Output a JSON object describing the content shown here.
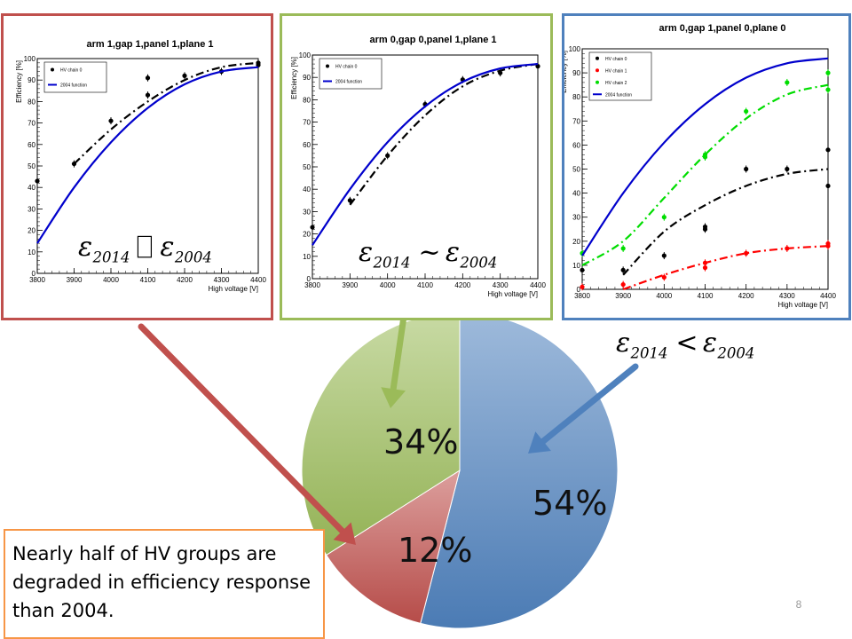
{
  "slide": {
    "textbox": "Nearly half of HV groups are degraded in efficiency response than 2004.",
    "page_number": "8"
  },
  "colors": {
    "pie_blue": "#4f81bd",
    "pie_red": "#c0504d",
    "pie_green": "#9bbb59",
    "arrow_red": "#c0504d",
    "arrow_green": "#9bbb59",
    "arrow_blue": "#4f81bd"
  },
  "chart_data": [
    {
      "type": "pie",
      "labels": [
        "54%",
        "12%",
        "34%"
      ],
      "values": [
        54,
        12,
        34
      ],
      "colors": [
        "#4f81bd",
        "#c0504d",
        "#9bbb59"
      ]
    },
    {
      "type": "scatter",
      "title": "arm 1,gap 1,panel 1,plane 1",
      "xlabel": "High voltage [V]",
      "ylabel": "Efficiency [%]",
      "xlim": [
        3800,
        4400
      ],
      "ylim": [
        0,
        100
      ],
      "x_ticks": [
        3800,
        3900,
        4000,
        4100,
        4200,
        4300,
        4400
      ],
      "y_ticks": [
        0,
        10,
        20,
        30,
        40,
        50,
        60,
        70,
        80,
        90,
        100
      ],
      "legend": [
        "HV chain 0",
        "2004 function"
      ],
      "relation": "ε2014 ⬚ ε2004",
      "series": [
        {
          "name": "HV chain 0",
          "color": "#000000",
          "kind": "points",
          "x": [
            3800,
            3900,
            4000,
            4100,
            4100,
            4200,
            4300,
            4400,
            4400
          ],
          "y": [
            43,
            51,
            71,
            91,
            83,
            92,
            94,
            98,
            97
          ]
        },
        {
          "color": "#000000",
          "kind": "fit-dashdot",
          "x": [
            3900,
            4000,
            4100,
            4200,
            4300,
            4400
          ],
          "y": [
            51,
            67,
            80,
            90,
            96,
            98
          ]
        },
        {
          "name": "2004 function",
          "color": "#0000cc",
          "kind": "line",
          "x": [
            3800,
            3900,
            4000,
            4100,
            4200,
            4300,
            4400
          ],
          "y": [
            14,
            40,
            61,
            77,
            88,
            94,
            96
          ]
        }
      ]
    },
    {
      "type": "scatter",
      "title": "arm 0,gap 0,panel 1,plane 1",
      "xlabel": "High voltage [V]",
      "ylabel": "Efficiency [%]",
      "xlim": [
        3800,
        4400
      ],
      "ylim": [
        0,
        100
      ],
      "x_ticks": [
        3800,
        3900,
        4000,
        4100,
        4200,
        4300,
        4400
      ],
      "y_ticks": [
        0,
        10,
        20,
        30,
        40,
        50,
        60,
        70,
        80,
        90,
        100
      ],
      "legend": [
        "HV chain 0",
        "2004 function"
      ],
      "relation": "ε2014 ~ ε2004",
      "series": [
        {
          "name": "HV chain 0",
          "color": "#000000",
          "kind": "points",
          "x": [
            3800,
            3900,
            4000,
            4100,
            4200,
            4300,
            4400
          ],
          "y": [
            23,
            35,
            55,
            78,
            89,
            92,
            95
          ]
        },
        {
          "color": "#000000",
          "kind": "fit-dashdot",
          "x": [
            3900,
            4000,
            4100,
            4200,
            4300,
            4400
          ],
          "y": [
            33,
            55,
            73,
            86,
            93,
            96
          ]
        },
        {
          "name": "2004 function",
          "color": "#0000cc",
          "kind": "line",
          "x": [
            3800,
            3900,
            4000,
            4100,
            4200,
            4300,
            4400
          ],
          "y": [
            15,
            40,
            61,
            77,
            88,
            94,
            96
          ]
        }
      ]
    },
    {
      "type": "scatter",
      "title": "arm 0,gap 1,panel 0,plane 0",
      "xlabel": "High voltage [V]",
      "ylabel": "Efficiency [%]",
      "xlim": [
        3800,
        4400
      ],
      "ylim": [
        0,
        100
      ],
      "x_ticks": [
        3800,
        3900,
        4000,
        4100,
        4200,
        4300,
        4400
      ],
      "y_ticks": [
        0,
        10,
        20,
        30,
        40,
        50,
        60,
        70,
        80,
        90,
        100
      ],
      "legend": [
        "HV chain 0",
        "HV chain 1",
        "HV chain 2",
        "2004 function"
      ],
      "relation": "ε2014 < ε2004",
      "series": [
        {
          "name": "HV chain 0",
          "color": "#000000",
          "kind": "points",
          "x": [
            3800,
            3900,
            4000,
            4100,
            4100,
            4200,
            4300,
            4400,
            4400
          ],
          "y": [
            8,
            8,
            14,
            25,
            26,
            50,
            50,
            58,
            43
          ]
        },
        {
          "color": "#000000",
          "kind": "fit-dashdot",
          "x": [
            3900,
            4000,
            4100,
            4200,
            4300,
            4400
          ],
          "y": [
            6,
            24,
            35,
            43,
            48,
            50
          ]
        },
        {
          "name": "HV chain 1",
          "color": "#ff0000",
          "kind": "points",
          "x": [
            3800,
            3900,
            4000,
            4100,
            4100,
            4200,
            4300,
            4400,
            4400
          ],
          "y": [
            1,
            2,
            5,
            9,
            11,
            15,
            17,
            18,
            19
          ]
        },
        {
          "color": "#ff0000",
          "kind": "fit-dashdot",
          "x": [
            3900,
            4000,
            4100,
            4200,
            4300,
            4400
          ],
          "y": [
            0,
            6,
            11,
            15,
            17,
            18
          ]
        },
        {
          "name": "HV chain 2",
          "color": "#00dd00",
          "kind": "points",
          "x": [
            3800,
            3900,
            4000,
            4100,
            4100,
            4200,
            4300,
            4400,
            4400
          ],
          "y": [
            15,
            17,
            30,
            55,
            56,
            74,
            86,
            90,
            83
          ]
        },
        {
          "color": "#00dd00",
          "kind": "fit-dashdot",
          "x": [
            3800,
            3900,
            4000,
            4100,
            4200,
            4300,
            4400
          ],
          "y": [
            10,
            20,
            38,
            56,
            71,
            81,
            85
          ]
        },
        {
          "name": "2004 function",
          "color": "#0000cc",
          "kind": "line",
          "x": [
            3800,
            3900,
            4000,
            4100,
            4200,
            4300,
            4400
          ],
          "y": [
            14,
            40,
            61,
            77,
            88,
            94,
            96
          ]
        }
      ]
    }
  ]
}
